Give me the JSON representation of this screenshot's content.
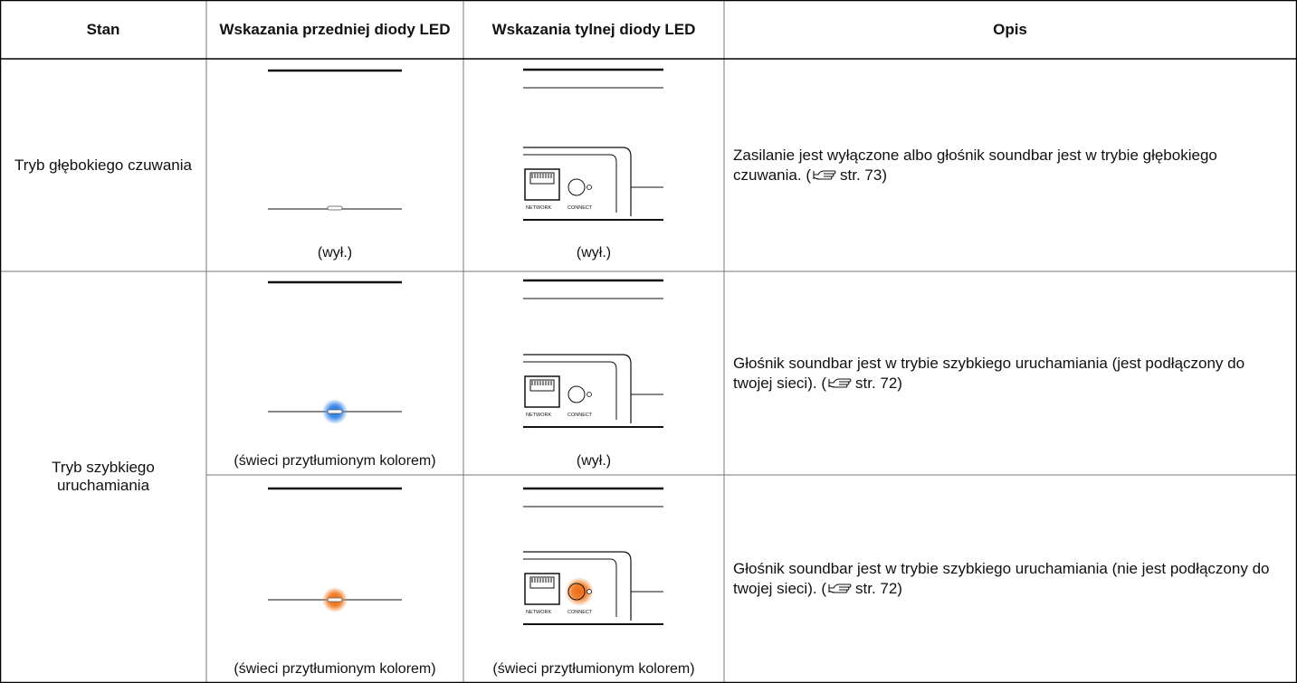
{
  "table": {
    "headers": [
      "Stan",
      "Wskazania przedniej diody LED",
      "Wskazania tylnej diody LED",
      "Opis"
    ],
    "port_labels": [
      "NETWORK",
      "CONNECT"
    ],
    "rows": [
      {
        "state": "Tryb głębokiego czuwania",
        "front_caption": "(wył.)",
        "rear_caption": "(wył.)",
        "description": "Zasilanie jest wyłączone albo głośnik soundbar jest w trybie głębokiego czuwania.",
        "ref_open": "(",
        "ref": "str. 73)"
      },
      {
        "state": "Tryb szybkiego uruchamiania",
        "front_caption": "(świeci przytłumionym kolorem)",
        "rear_caption": "(wył.)",
        "description": "Głośnik soundbar jest w trybie szybkiego uruchamiania (jest podłączony do twojej sieci).",
        "ref_open": "(",
        "ref": "str. 72)"
      },
      {
        "front_caption": "(świeci przytłumionym kolorem)",
        "rear_caption": "(świeci przytłumionym kolorem)",
        "description": "Głośnik soundbar jest w trybie szybkiego uruchamiania (nie jest podłączony do twojej sieci).",
        "ref_open": "(",
        "ref": "str. 72)"
      }
    ]
  }
}
